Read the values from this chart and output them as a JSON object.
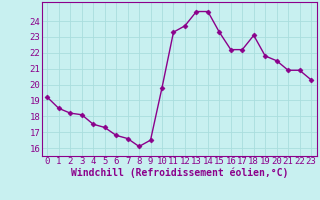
{
  "x": [
    0,
    1,
    2,
    3,
    4,
    5,
    6,
    7,
    8,
    9,
    10,
    11,
    12,
    13,
    14,
    15,
    16,
    17,
    18,
    19,
    20,
    21,
    22,
    23
  ],
  "y": [
    19.2,
    18.5,
    18.2,
    18.1,
    17.5,
    17.3,
    16.8,
    16.6,
    16.1,
    16.5,
    19.8,
    23.3,
    23.7,
    24.6,
    24.6,
    23.3,
    22.2,
    22.2,
    23.1,
    21.8,
    21.5,
    20.9,
    20.9,
    20.3
  ],
  "line_color": "#8b008b",
  "marker": "D",
  "marker_size": 2.5,
  "bg_color": "#c8f0f0",
  "grid_color": "#aadddd",
  "xlabel": "Windchill (Refroidissement éolien,°C)",
  "ylabel": "",
  "ylim": [
    15.5,
    25.2
  ],
  "xlim": [
    -0.5,
    23.5
  ],
  "yticks": [
    16,
    17,
    18,
    19,
    20,
    21,
    22,
    23,
    24
  ],
  "xticks": [
    0,
    1,
    2,
    3,
    4,
    5,
    6,
    7,
    8,
    9,
    10,
    11,
    12,
    13,
    14,
    15,
    16,
    17,
    18,
    19,
    20,
    21,
    22,
    23
  ],
  "xlabel_fontsize": 7.0,
  "tick_fontsize": 6.5,
  "line_width": 1.0,
  "spine_color": "#8b008b"
}
